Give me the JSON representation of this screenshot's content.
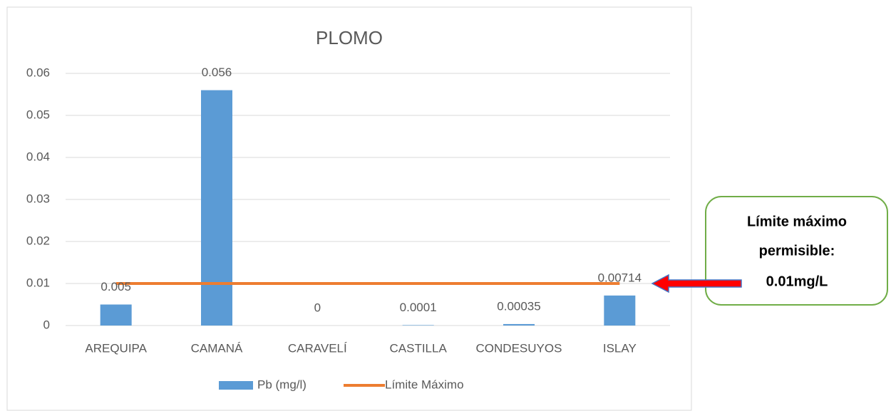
{
  "chart_data": {
    "type": "bar",
    "title": "PLOMO",
    "categories": [
      "AREQUIPA",
      "CAMANÁ",
      "CARAVELÍ",
      "CASTILLA",
      "CONDESUYOS",
      "ISLAY"
    ],
    "series": [
      {
        "name": "Pb (mg/l)",
        "type": "bar",
        "color": "#5b9bd5",
        "values": [
          0.005,
          0.056,
          0,
          0.0001,
          0.00035,
          0.00714
        ]
      },
      {
        "name": "Límite Máximo",
        "type": "line",
        "color": "#ed7d31",
        "values": [
          0.01,
          0.01,
          0.01,
          0.01,
          0.01,
          0.01
        ]
      }
    ],
    "ylim": [
      0,
      0.06
    ],
    "yticks": [
      0,
      0.01,
      0.02,
      0.03,
      0.04,
      0.05,
      0.06
    ],
    "grid": true,
    "legend": "bottom",
    "annotation": [
      "Límite máximo",
      "permisible:",
      "0.01mg/L"
    ]
  }
}
